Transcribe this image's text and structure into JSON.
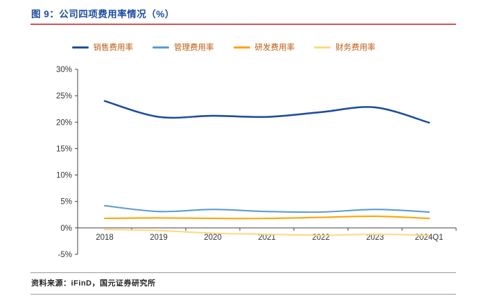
{
  "header": {
    "title": "图 9：公司四项费用率情况（%）",
    "title_color": "#1D4EA1",
    "rule_color": "#D25252"
  },
  "chart_data": {
    "type": "line",
    "title": "公司四项费用率情况（%）",
    "categories": [
      "2018",
      "2019",
      "2020",
      "2021",
      "2022",
      "2023",
      "2024Q1"
    ],
    "series": [
      {
        "name": "销售费用率",
        "color": "#1F4E9F",
        "values": [
          24.0,
          21.0,
          21.2,
          21.0,
          21.9,
          22.8,
          19.9
        ]
      },
      {
        "name": "管理费用率",
        "color": "#5B9BD5",
        "values": [
          4.2,
          3.1,
          3.5,
          3.1,
          3.0,
          3.5,
          3.0
        ]
      },
      {
        "name": "研发费用率",
        "color": "#FFA400",
        "values": [
          1.8,
          1.9,
          1.8,
          1.8,
          2.0,
          2.2,
          1.8
        ]
      },
      {
        "name": "财务费用率",
        "color": "#FFD87E",
        "values": [
          -0.3,
          -0.5,
          -1.0,
          -1.2,
          -1.4,
          -1.2,
          -1.4
        ]
      }
    ],
    "ylim": [
      -5,
      30
    ],
    "ytick_step": 5,
    "ytick_labels": [
      "-5%",
      "0%",
      "5%",
      "10%",
      "15%",
      "20%",
      "25%",
      "30%"
    ],
    "grid": false,
    "legend_position": "top",
    "axis_color": "#404040",
    "label_color": "#333333",
    "legend_text_color": "#C05A11"
  },
  "footer": {
    "source": "资料来源：iFinD，国元证券研究所"
  }
}
